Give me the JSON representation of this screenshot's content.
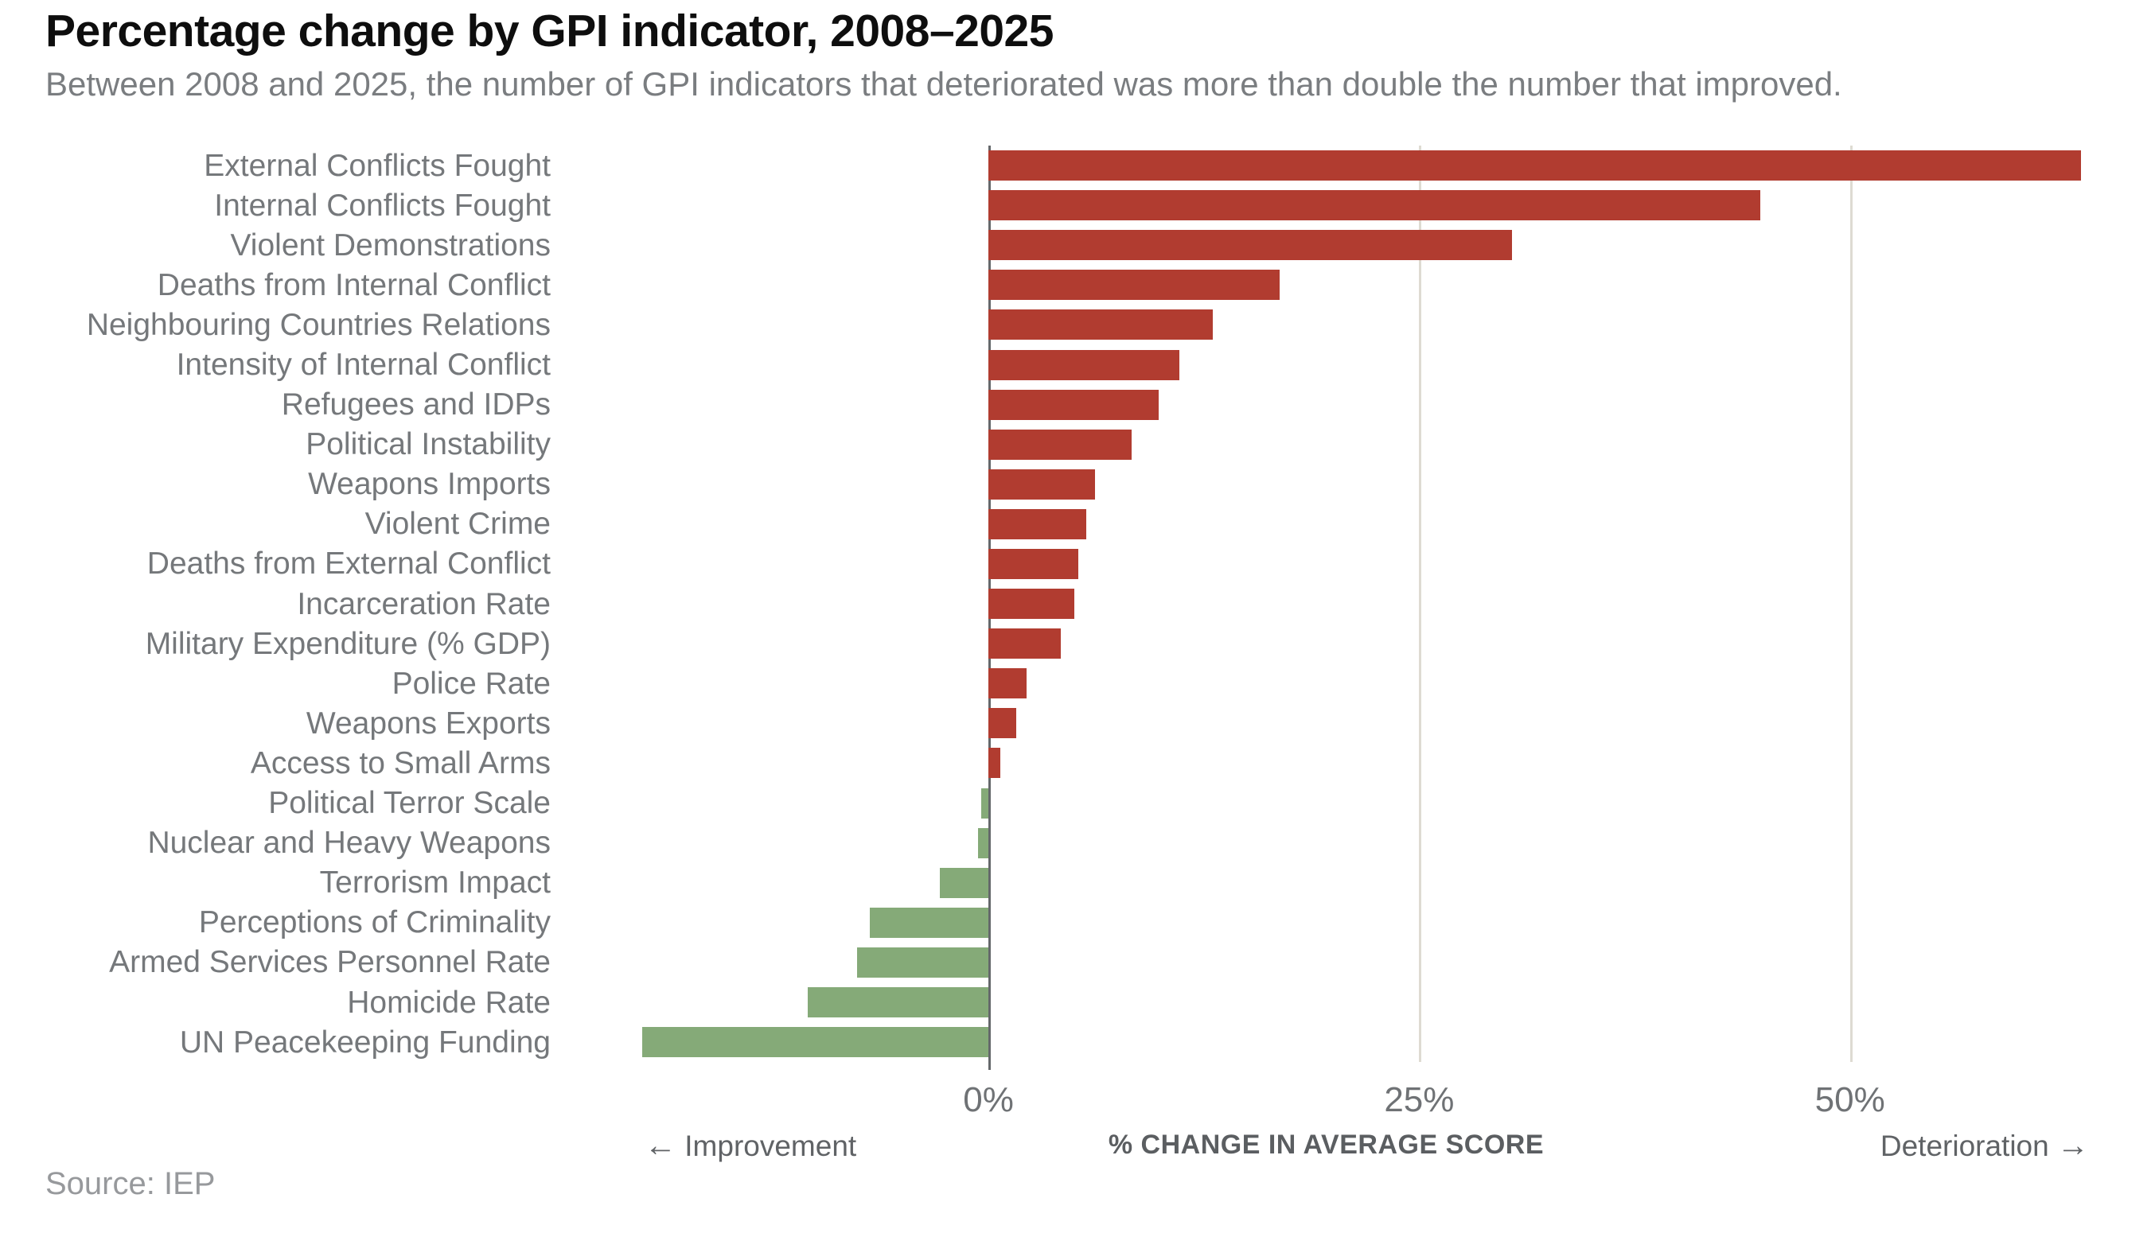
{
  "header": {
    "title": "Percentage change by GPI indicator, 2008–2025",
    "subtitle": "Between 2008 and 2025, the number of GPI indicators that deteriorated was more than double the number that improved."
  },
  "footer": {
    "source": "Source: IEP"
  },
  "axis_captions": {
    "left_arrow": "←",
    "left_label": "Improvement",
    "xlabel": "% CHANGE IN AVERAGE SCORE",
    "right_label": "Deterioration",
    "right_arrow": "→"
  },
  "chart_data": {
    "type": "bar",
    "orientation": "horizontal",
    "title": "Percentage change by GPI indicator, 2008–2025",
    "subtitle": "Between 2008 and 2025, the number of GPI indicators that deteriorated was more than double the number that improved.",
    "xlabel": "% CHANGE IN AVERAGE SCORE",
    "ylabel": "",
    "categories": [
      "External Conflicts Fought",
      "Internal Conflicts Fought",
      "Violent Demonstrations",
      "Deaths from Internal Conflict",
      "Neighbouring Countries Relations",
      "Intensity of Internal Conflict",
      "Refugees and IDPs",
      "Political Instability",
      "Weapons Imports",
      "Violent Crime",
      "Deaths from External Conflict",
      "Incarceration Rate",
      "Military Expenditure (% GDP)",
      "Police Rate",
      "Weapons Exports",
      "Access to Small Arms",
      "Political Terror Scale",
      "Nuclear and Heavy Weapons",
      "Terrorism Impact",
      "Perceptions of Criminality",
      "Armed Services Personnel Rate",
      "Homicide Rate",
      "UN Peacekeeping Funding"
    ],
    "values": [
      63.4,
      44.8,
      30.4,
      16.9,
      13.0,
      11.1,
      9.9,
      8.3,
      6.2,
      5.7,
      5.2,
      5.0,
      4.2,
      2.2,
      1.6,
      0.7,
      -0.4,
      -0.6,
      -2.8,
      -6.9,
      -7.6,
      -10.5,
      -20.1
    ],
    "value_unit": "%",
    "x_ticks": [
      {
        "label": "0%",
        "value": 0
      },
      {
        "label": "25%",
        "value": 25
      },
      {
        "label": "50%",
        "value": 50
      }
    ],
    "xlim": [
      -24.8,
      67.7
    ],
    "grid": "vertical-gridlines",
    "legend_position": "none",
    "annotations": {
      "left": "← Improvement",
      "right": "Deterioration →"
    },
    "colors": {
      "deterioration_bar": "#b13c30",
      "improvement_bar": "#85aa78",
      "gridline": "#dedbd2",
      "axis_line": "#65686b",
      "title_text": "#0e0e0e",
      "subtitle_text": "#7a7d80",
      "label_text": "#75787b",
      "tick_text": "#6f7275",
      "source_text": "#97999c"
    }
  }
}
